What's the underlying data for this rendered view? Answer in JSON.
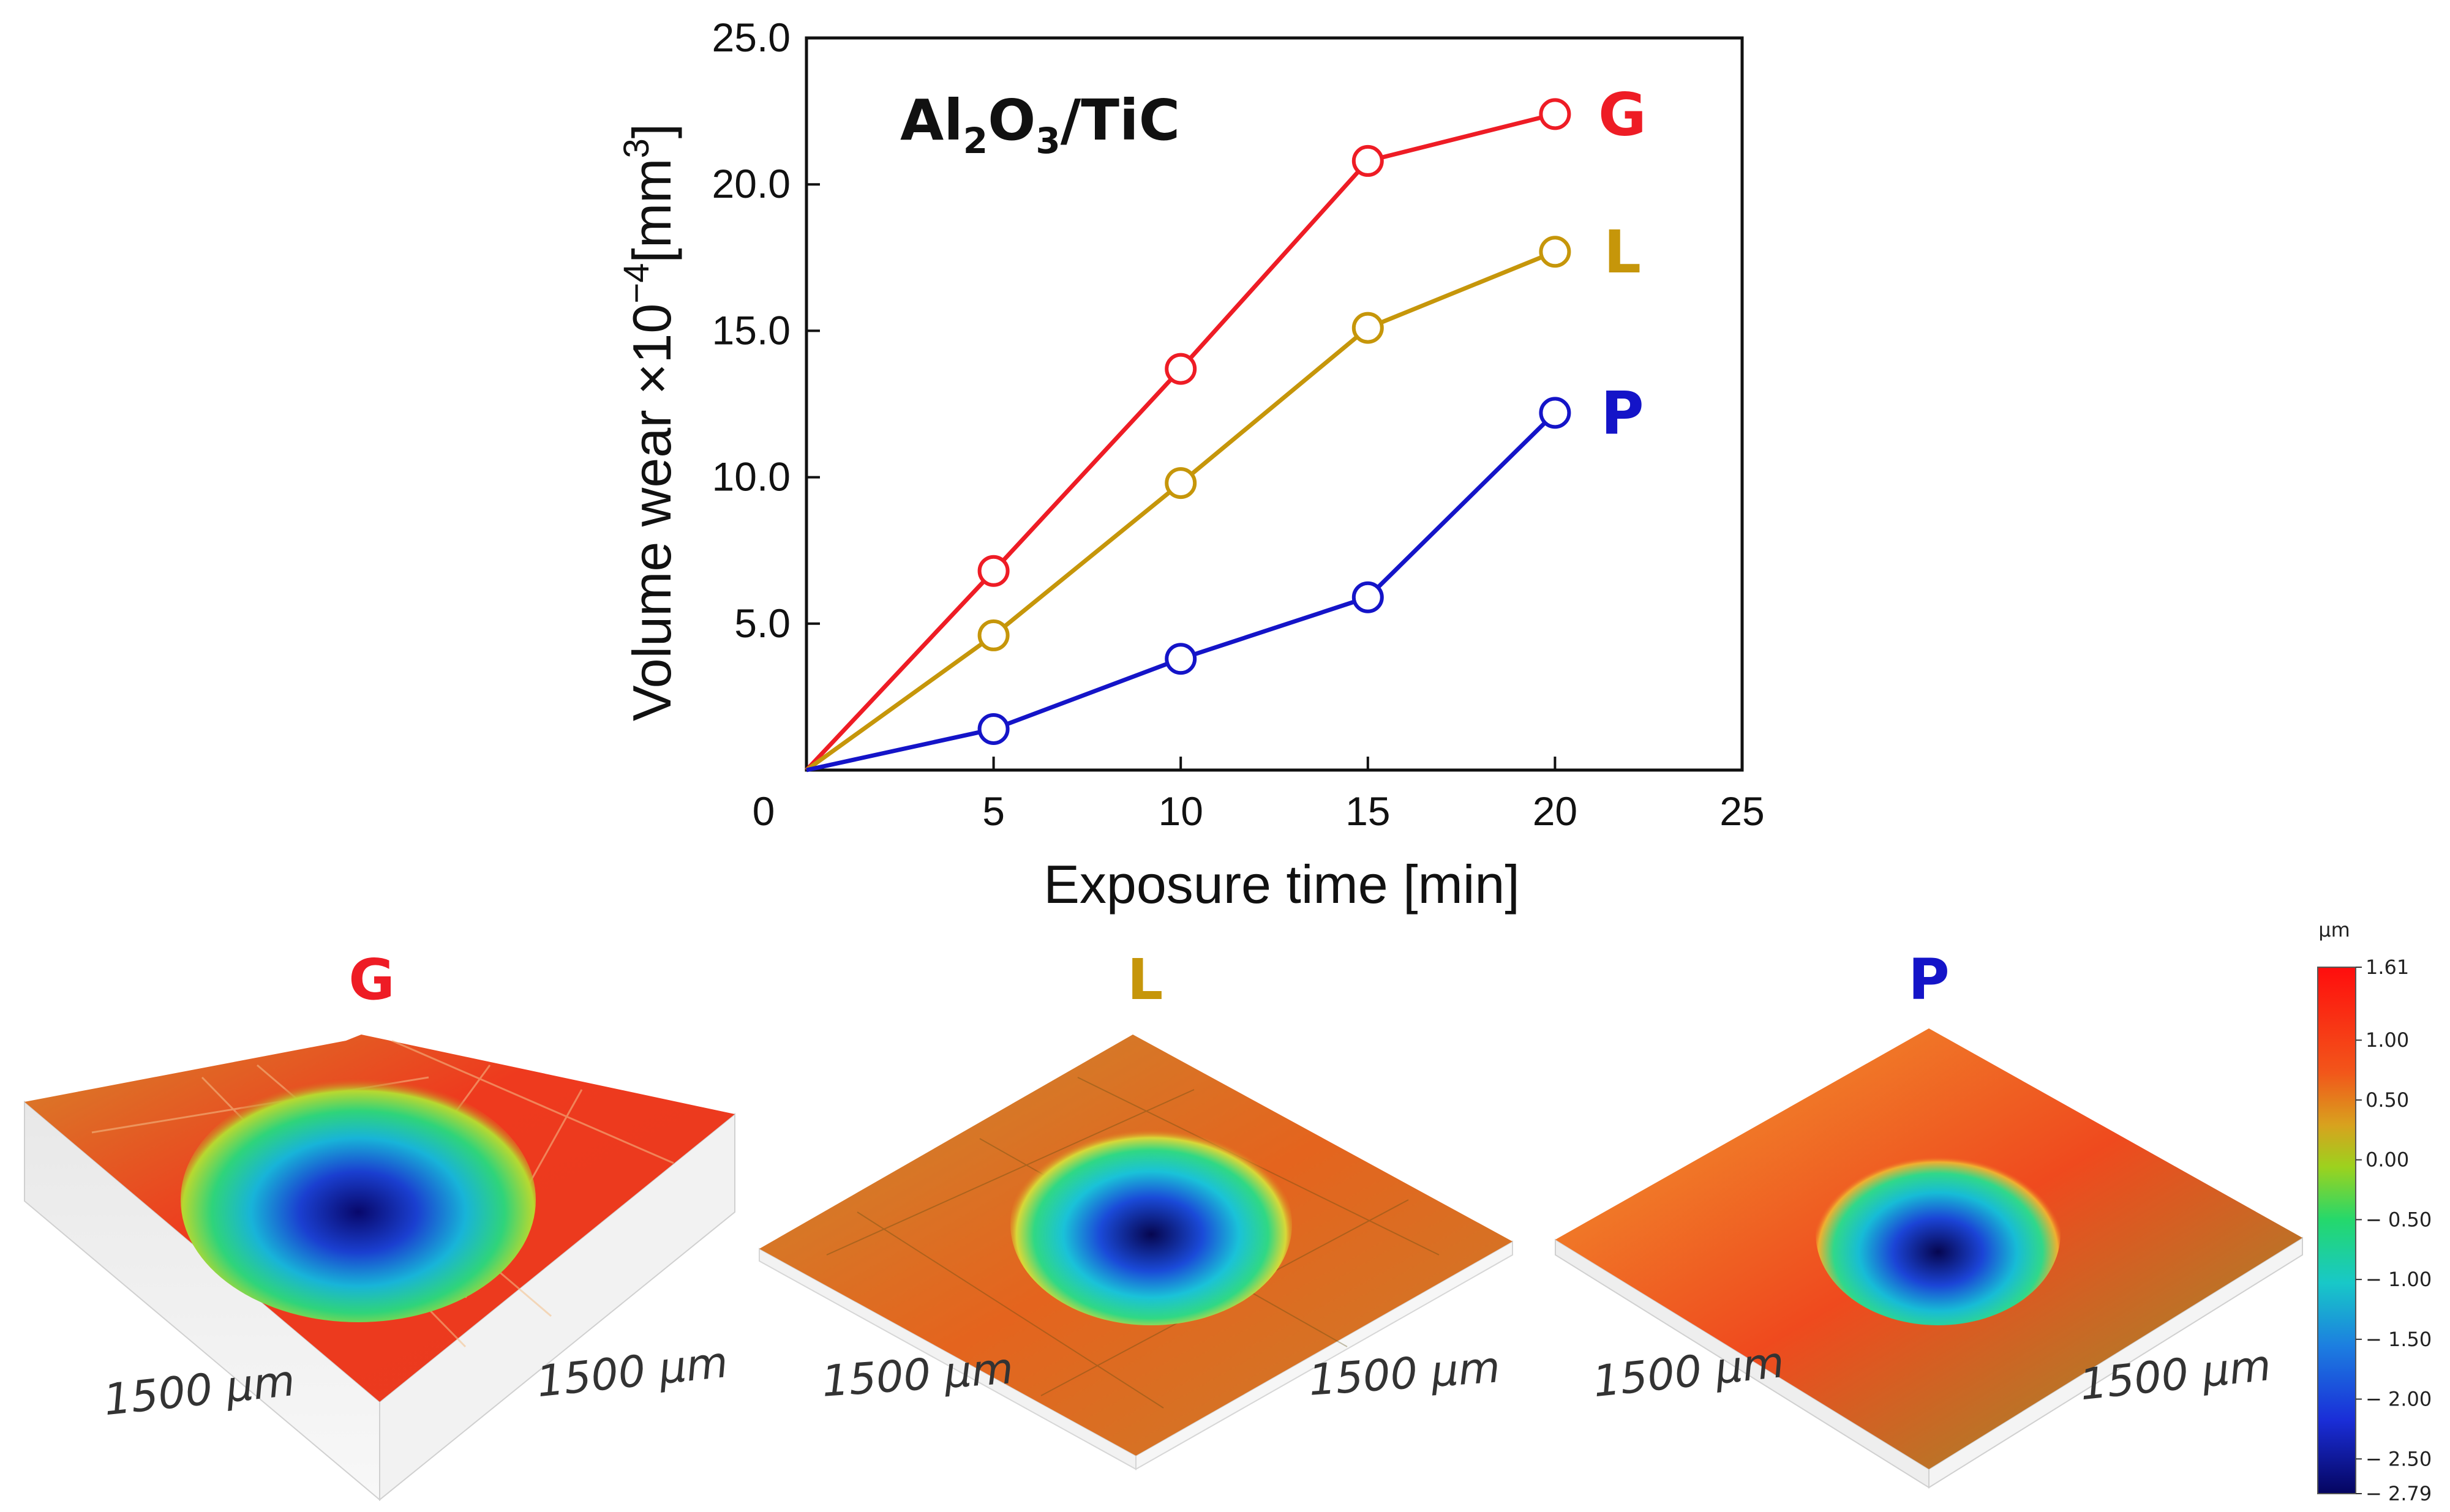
{
  "chart_data": {
    "type": "line",
    "material": {
      "base": "Al",
      "sub1": "2",
      "mid": "O",
      "sub2": "3",
      "tail": "/TiC"
    },
    "xlabel": "Exposure time [min]",
    "ylabel": {
      "main": "Volume wear ×10",
      "exp": "−4",
      "unit": "[mm",
      "unit_exp": "3",
      "close": "]"
    },
    "xlim": [
      0,
      25
    ],
    "ylim": [
      0,
      25
    ],
    "x_ticks": [
      {
        "value": 0,
        "label": "0"
      },
      {
        "value": 5,
        "label": "5"
      },
      {
        "value": 10,
        "label": "10"
      },
      {
        "value": 15,
        "label": "15"
      },
      {
        "value": 20,
        "label": "20"
      },
      {
        "value": 25,
        "label": "25"
      }
    ],
    "y_ticks": [
      {
        "value": 5,
        "label": "5.0"
      },
      {
        "value": 10,
        "label": "10.0"
      },
      {
        "value": 15,
        "label": "15.0"
      },
      {
        "value": 20,
        "label": "20.0"
      },
      {
        "value": 25,
        "label": "25.0"
      }
    ],
    "x": [
      0,
      5,
      10,
      15,
      20
    ],
    "series": [
      {
        "name": "G",
        "color": "#ee1c25",
        "values": [
          0,
          6.8,
          13.7,
          20.8,
          22.4
        ]
      },
      {
        "name": "L",
        "color": "#c6960a",
        "values": [
          0,
          4.6,
          9.8,
          15.1,
          17.7
        ]
      },
      {
        "name": "P",
        "color": "#1414c8",
        "values": [
          0,
          1.4,
          3.8,
          5.9,
          12.2
        ]
      }
    ]
  },
  "surface_maps": {
    "panels": [
      {
        "title": "G",
        "color": "#ee1c25",
        "dim_left": "1500 μm",
        "dim_right": "1500 μm"
      },
      {
        "title": "L",
        "color": "#c6960a",
        "dim_left": "1500 μm",
        "dim_right": "1500 μm"
      },
      {
        "title": "P",
        "color": "#1414c8",
        "dim_left": "1500 μm",
        "dim_right": "1500 μm"
      }
    ],
    "colorbar": {
      "unit": "μm",
      "ticks": [
        {
          "value": 1.61,
          "label": "1.61"
        },
        {
          "value": 1.0,
          "label": "1.00"
        },
        {
          "value": 0.5,
          "label": "0.50"
        },
        {
          "value": 0.0,
          "label": "0.00"
        },
        {
          "value": -0.5,
          "label": "− 0.50"
        },
        {
          "value": -1.0,
          "label": "− 1.00"
        },
        {
          "value": -1.5,
          "label": "− 1.50"
        },
        {
          "value": -2.0,
          "label": "− 2.00"
        },
        {
          "value": -2.5,
          "label": "− 2.50"
        },
        {
          "value": -2.79,
          "label": "− 2.79"
        }
      ]
    }
  }
}
